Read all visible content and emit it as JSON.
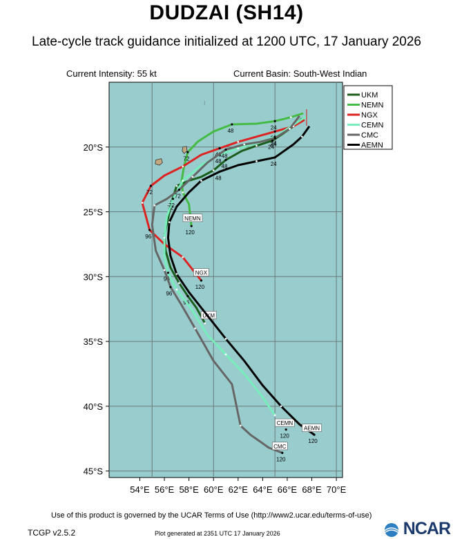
{
  "header": {
    "title": "DUDZAI (SH14)",
    "subtitle": "Late-cycle track guidance initialized at 1200 UTC, 17 January 2026",
    "intensity": "Current Intensity: 55 kt",
    "basin": "Current Basin: South-West Indian"
  },
  "footer": {
    "terms": "Use of this product is governed by the UCAR Terms of Use (http://www2.ucar.edu/terms-of-use)",
    "version": "TCGP v2.5.2",
    "generated": "Plot generated at 2351 UTC   17 January 2026",
    "logo": "NCAR"
  },
  "chart_data": {
    "type": "map",
    "xlim": [
      51.5,
      70.5
    ],
    "ylim": [
      -45.5,
      -15.0
    ],
    "x_ticks": [
      54,
      56,
      58,
      60,
      62,
      64,
      66,
      68,
      70
    ],
    "x_tick_labels": [
      "54°E",
      "56°E",
      "58°E",
      "60°E",
      "62°E",
      "64°E",
      "66°E",
      "68°E",
      "70°E"
    ],
    "y_ticks": [
      -20,
      -25,
      -30,
      -35,
      -40,
      -45
    ],
    "y_tick_labels": [
      "20°S",
      "25°S",
      "30°S",
      "35°S",
      "40°S",
      "45°S"
    ],
    "grid": true,
    "legend_position": "top-right",
    "colors": {
      "ocean": "#99cccc",
      "land": "#c4a880",
      "grid": "#6a7a7a"
    },
    "series": [
      {
        "name": "UKM",
        "color": "#1b5e1b",
        "points": [
          [
            67.2,
            -17.8
          ],
          [
            66.5,
            -18.4
          ],
          [
            65.6,
            -19.0
          ],
          [
            64.8,
            -19.5
          ],
          [
            63.5,
            -19.9
          ],
          [
            62.3,
            -20.3
          ],
          [
            61.0,
            -21.0
          ],
          [
            60.0,
            -21.8
          ],
          [
            59.0,
            -22.3
          ],
          [
            58.0,
            -22.6
          ],
          [
            57.0,
            -23.0
          ],
          [
            56.6,
            -24.2
          ],
          [
            56.3,
            -25.5
          ],
          [
            56.0,
            -26.8
          ],
          [
            56.1,
            -28.0
          ],
          [
            56.5,
            -29.3
          ],
          [
            57.2,
            -30.5
          ],
          [
            57.9,
            -31.5
          ],
          [
            58.6,
            -32.4
          ],
          [
            59.3,
            -33.6
          ]
        ],
        "labels": [
          [
            "24",
            [
              64.8,
              -19.5
            ]
          ],
          [
            "48",
            [
              61.0,
              -21.0
            ]
          ],
          [
            "72",
            [
              56.6,
              -24.2
            ]
          ],
          [
            "96",
            [
              57.9,
              -31.5
            ]
          ]
        ],
        "end_tag": "UKM",
        "end_tag_pos": [
          59.6,
          -33.1
        ]
      },
      {
        "name": "NEMN",
        "color": "#44bb44",
        "points": [
          [
            67.3,
            -17.4
          ],
          [
            66.3,
            -17.7
          ],
          [
            65.0,
            -18.0
          ],
          [
            63.5,
            -18.2
          ],
          [
            61.5,
            -18.25
          ],
          [
            60.0,
            -18.8
          ],
          [
            58.7,
            -19.6
          ],
          [
            57.9,
            -20.4
          ],
          [
            57.6,
            -21.5
          ],
          [
            57.4,
            -22.6
          ],
          [
            57.5,
            -23.5
          ],
          [
            58.0,
            -24.4
          ],
          [
            58.2,
            -26.1
          ]
        ],
        "labels": [
          [
            "24",
            [
              65.0,
              -18.0
            ]
          ],
          [
            "48",
            [
              61.5,
              -18.25
            ]
          ],
          [
            "72",
            [
              57.9,
              -20.4
            ]
          ],
          [
            "120",
            [
              58.2,
              -26.1
            ]
          ]
        ],
        "end_tag": "NEMN",
        "end_tag_pos": [
          58.3,
          -25.6
        ]
      },
      {
        "name": "NGX",
        "color": "#dd2222",
        "points": [
          [
            67.4,
            -17.9
          ],
          [
            66.5,
            -18.4
          ],
          [
            65.0,
            -18.8
          ],
          [
            63.5,
            -19.2
          ],
          [
            62.0,
            -19.6
          ],
          [
            60.5,
            -20.1
          ],
          [
            59.0,
            -20.6
          ],
          [
            57.5,
            -21.5
          ],
          [
            56.0,
            -22.2
          ],
          [
            54.9,
            -23.0
          ],
          [
            54.2,
            -24.3
          ],
          [
            54.8,
            -26.4
          ],
          [
            56.0,
            -27.5
          ],
          [
            57.5,
            -28.5
          ],
          [
            59.0,
            -30.3
          ]
        ],
        "labels": [
          [
            "24",
            [
              65.0,
              -18.8
            ]
          ],
          [
            "48",
            [
              60.5,
              -20.1
            ]
          ],
          [
            "72",
            [
              54.9,
              -23.0
            ]
          ],
          [
            "96",
            [
              54.8,
              -26.4
            ]
          ],
          [
            "120",
            [
              59.0,
              -30.3
            ]
          ]
        ],
        "end_tag": "NGX",
        "end_tag_pos": [
          59.0,
          -29.8
        ]
      },
      {
        "name": "CEMN",
        "color": "#77eebb",
        "points": [
          [
            67.6,
            -17.6
          ],
          [
            66.5,
            -18.3
          ],
          [
            65.0,
            -19.2
          ],
          [
            63.5,
            -19.7
          ],
          [
            62.0,
            -20.1
          ],
          [
            60.5,
            -20.6
          ],
          [
            59.0,
            -21.4
          ],
          [
            57.5,
            -22.6
          ],
          [
            56.7,
            -24.0
          ],
          [
            56.2,
            -25.4
          ],
          [
            56.0,
            -27.0
          ],
          [
            56.0,
            -28.5
          ],
          [
            56.3,
            -29.7
          ],
          [
            57.0,
            -31.0
          ],
          [
            58.2,
            -32.5
          ],
          [
            59.5,
            -34.5
          ],
          [
            61.0,
            -36.0
          ],
          [
            62.5,
            -37.5
          ],
          [
            64.0,
            -39.3
          ],
          [
            65.0,
            -40.7
          ]
        ],
        "labels": [
          [
            "24",
            [
              65.0,
              -19.2
            ]
          ],
          [
            "48",
            [
              60.5,
              -20.6
            ]
          ],
          [
            "72",
            [
              56.7,
              -24.0
            ]
          ],
          [
            "96",
            [
              56.3,
              -29.7
            ]
          ],
          [
            "120",
            [
              65.9,
              -41.8
            ]
          ]
        ],
        "end_tag": "CEMN",
        "end_tag_pos": [
          65.8,
          -41.4
        ]
      },
      {
        "name": "CMC",
        "color": "#666666",
        "points": [
          [
            67.0,
            -17.6
          ],
          [
            66.2,
            -18.6
          ],
          [
            65.0,
            -19.3
          ],
          [
            63.8,
            -19.6
          ],
          [
            62.5,
            -19.8
          ],
          [
            61.0,
            -20.2
          ],
          [
            59.5,
            -21.2
          ],
          [
            58.3,
            -22.3
          ],
          [
            57.2,
            -23.3
          ],
          [
            56.2,
            -24.0
          ],
          [
            55.2,
            -24.5
          ],
          [
            55.0,
            -26.0
          ],
          [
            55.3,
            -28.0
          ],
          [
            56.0,
            -29.5
          ],
          [
            56.5,
            -30.8
          ],
          [
            57.4,
            -32.2
          ],
          [
            58.5,
            -34.0
          ],
          [
            60.0,
            -36.5
          ],
          [
            61.5,
            -38.3
          ],
          [
            62.2,
            -41.5
          ],
          [
            63.0,
            -42.2
          ],
          [
            64.5,
            -43.2
          ],
          [
            65.6,
            -43.6
          ]
        ],
        "labels": [
          [
            "24",
            [
              65.0,
              -19.3
            ]
          ],
          [
            "48",
            [
              61.0,
              -20.2
            ]
          ],
          [
            "72",
            [
              57.2,
              -23.3
            ]
          ],
          [
            "96",
            [
              56.5,
              -30.8
            ]
          ],
          [
            "120",
            [
              65.6,
              -43.6
            ]
          ]
        ],
        "end_tag": "CMC",
        "end_tag_pos": [
          65.4,
          -43.2
        ]
      },
      {
        "name": "AEMN",
        "color": "#000000",
        "points": [
          [
            67.8,
            -18.4
          ],
          [
            67.2,
            -19.2
          ],
          [
            66.5,
            -19.8
          ],
          [
            65.0,
            -20.8
          ],
          [
            63.5,
            -21.1
          ],
          [
            62.0,
            -21.4
          ],
          [
            60.5,
            -21.9
          ],
          [
            59.0,
            -22.6
          ],
          [
            58.0,
            -23.5
          ],
          [
            57.0,
            -24.6
          ],
          [
            56.4,
            -25.8
          ],
          [
            56.3,
            -27.0
          ],
          [
            56.5,
            -28.4
          ],
          [
            57.0,
            -29.8
          ],
          [
            58.0,
            -31.2
          ],
          [
            59.5,
            -33.0
          ],
          [
            61.0,
            -34.8
          ],
          [
            62.5,
            -36.5
          ],
          [
            64.0,
            -38.4
          ],
          [
            65.5,
            -40.0
          ],
          [
            67.0,
            -41.4
          ],
          [
            68.2,
            -42.2
          ]
        ],
        "labels": [
          [
            "24",
            [
              65.0,
              -20.8
            ]
          ],
          [
            "48",
            [
              60.5,
              -21.9
            ]
          ],
          [
            "120",
            [
              68.2,
              -42.2
            ]
          ]
        ],
        "end_tag": "AEMN",
        "end_tag_pos": [
          68.0,
          -41.8
        ]
      }
    ],
    "land": [
      {
        "name": "reunion-island",
        "points": [
          [
            55.3,
            -21.0
          ],
          [
            55.75,
            -20.9
          ],
          [
            55.85,
            -21.2
          ],
          [
            55.6,
            -21.4
          ],
          [
            55.25,
            -21.3
          ]
        ]
      },
      {
        "name": "mauritius-island",
        "points": [
          [
            57.5,
            -20.0
          ],
          [
            57.8,
            -19.95
          ],
          [
            57.85,
            -20.3
          ],
          [
            57.6,
            -20.5
          ],
          [
            57.45,
            -20.3
          ]
        ]
      }
    ]
  }
}
